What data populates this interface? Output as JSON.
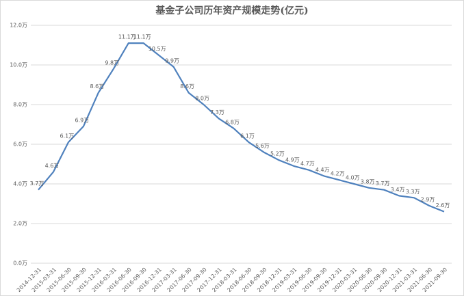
{
  "chart_data": {
    "type": "line",
    "title": "基金子公司历年资产规模走势(亿元)",
    "categories": [
      "2014-12-31",
      "2015-03-31",
      "2015-06-30",
      "2015-09-30",
      "2015-12-31",
      "2016-03-31",
      "2016-06-30",
      "2016-09-30",
      "2016-12-31",
      "2017-03-31",
      "2017-06-30",
      "2017-09-30",
      "2017-12-31",
      "2018-03-31",
      "2018-06-30",
      "2018-09-30",
      "2018-12-31",
      "2019-03-31",
      "2019-06-30",
      "2019-09-30",
      "2019-12-31",
      "2020-03-31",
      "2020-06-30",
      "2020-09-30",
      "2020-12-31",
      "2021-03-31",
      "2021-06-30",
      "2021-09-30"
    ],
    "values": [
      3.7,
      4.6,
      6.1,
      6.9,
      8.6,
      9.8,
      11.1,
      11.1,
      10.5,
      9.9,
      8.6,
      8.0,
      7.3,
      6.8,
      6.1,
      5.6,
      5.2,
      4.9,
      4.7,
      4.4,
      4.2,
      4.0,
      3.8,
      3.7,
      3.4,
      3.3,
      2.9,
      2.6
    ],
    "value_labels": [
      "3.7万",
      "4.6万",
      "6.1万",
      "6.9万",
      "8.6万",
      "9.8万",
      "11.1万",
      "11.1万",
      "10.5万",
      "9.9万",
      "8.6万",
      "8.0万",
      "7.3万",
      "6.8万",
      "6.1万",
      "5.6万",
      "5.2万",
      "4.9万",
      "4.7万",
      "4.4万",
      "4.2万",
      "4.0万",
      "3.8万",
      "3.7万",
      "3.4万",
      "3.3万",
      "2.9万",
      "2.6万"
    ],
    "color": "#4f81bd",
    "ylim": [
      0,
      12
    ],
    "yticks": [
      {
        "value": 0,
        "label": "0.0万"
      },
      {
        "value": 2,
        "label": "2.0万"
      },
      {
        "value": 4,
        "label": "4.0万"
      },
      {
        "value": 6,
        "label": "6.0万"
      },
      {
        "value": 8,
        "label": "8.0万"
      },
      {
        "value": 10,
        "label": "10.0万"
      },
      {
        "value": 12,
        "label": "12.0万"
      }
    ],
    "grid": true
  }
}
